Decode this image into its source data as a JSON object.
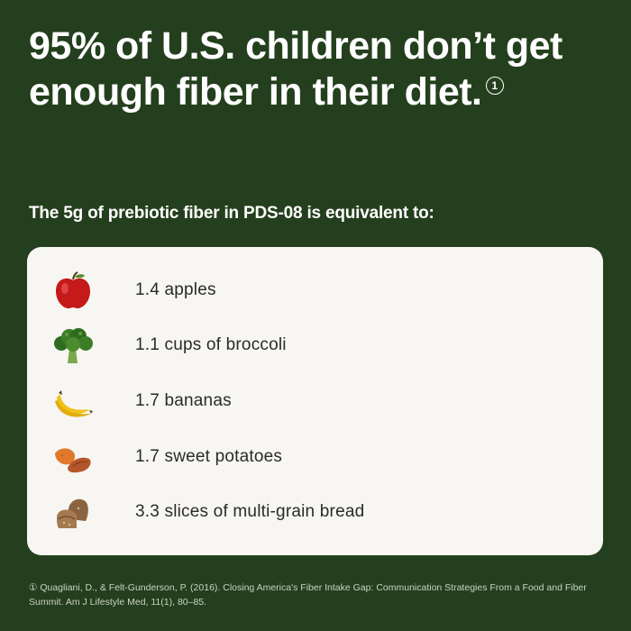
{
  "headline": {
    "text": "95% of U.S. children don’t get enough fiber in their diet.",
    "ref": "1"
  },
  "subhead": "The 5g of prebiotic fiber in PDS-08 is equivalent to:",
  "items": [
    {
      "icon": "apple-icon",
      "label": "1.4 apples"
    },
    {
      "icon": "broccoli-icon",
      "label": "1.1 cups of broccoli"
    },
    {
      "icon": "banana-icon",
      "label": "1.7 bananas"
    },
    {
      "icon": "sweet-potato-icon",
      "label": "1.7 sweet potatoes"
    },
    {
      "icon": "bread-icon",
      "label": "3.3 slices of multi-grain bread"
    }
  ],
  "footnote": "① Quagliani, D., & Felt-Gunderson, P. (2016). Closing America's Fiber Intake Gap: Communication Strategies From a Food and Fiber Summit. Am J Lifestyle Med, 11(1), 80–85.",
  "colors": {
    "background": "#243f1d",
    "card": "#f7f6f2",
    "text": "#ffffff",
    "item_text": "#2a2a2a"
  }
}
